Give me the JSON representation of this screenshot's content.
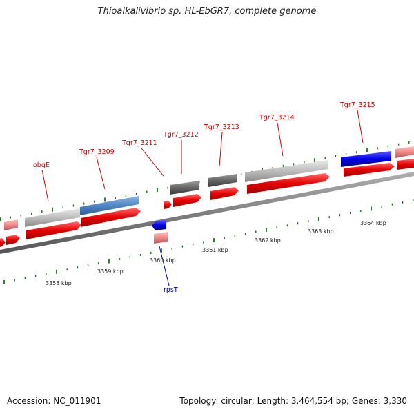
{
  "title": "Thioalkalivibrio sp. HL-EbGR7, complete genome",
  "footer": {
    "accession": "Accession: NC_011901",
    "summary": "Topology: circular; Length: 3,464,554 bp; Genes: 3,330"
  },
  "colors": {
    "backbone": "#808080",
    "cds_forward": "#e60000",
    "cds_forward_light": "#f08a8a",
    "gene_gray": "#bdbdbd",
    "gene_dark_gray": "#666666",
    "gene_steelblue": "#4f86c6",
    "gene_blue": "#0000e6",
    "tick": "#117711",
    "label_red": "#cc0000",
    "label_blue": "#0000aa"
  },
  "gene_labels": [
    {
      "id": "obgE",
      "text": "obgE"
    },
    {
      "id": "tgr7-3209",
      "text": "Tgr7_3209"
    },
    {
      "id": "tgr7-3211",
      "text": "Tgr7_3211"
    },
    {
      "id": "tgr7-3212",
      "text": "Tgr7_3212"
    },
    {
      "id": "tgr7-3213",
      "text": "Tgr7_3213"
    },
    {
      "id": "tgr7-3214",
      "text": "Tgr7_3214"
    },
    {
      "id": "tgr7-3215",
      "text": "Tgr7_3215"
    },
    {
      "id": "rpsT",
      "text": "rpsT"
    }
  ],
  "kbp_labels": [
    {
      "id": "3358",
      "text": "3358 kbp"
    },
    {
      "id": "3359",
      "text": "3359 kbp"
    },
    {
      "id": "3360",
      "text": "3360 kbp"
    },
    {
      "id": "3361",
      "text": "3361 kbp"
    },
    {
      "id": "3362",
      "text": "3362 kbp"
    },
    {
      "id": "3363",
      "text": "3363 kbp"
    },
    {
      "id": "3364",
      "text": "3364 kbp"
    }
  ]
}
